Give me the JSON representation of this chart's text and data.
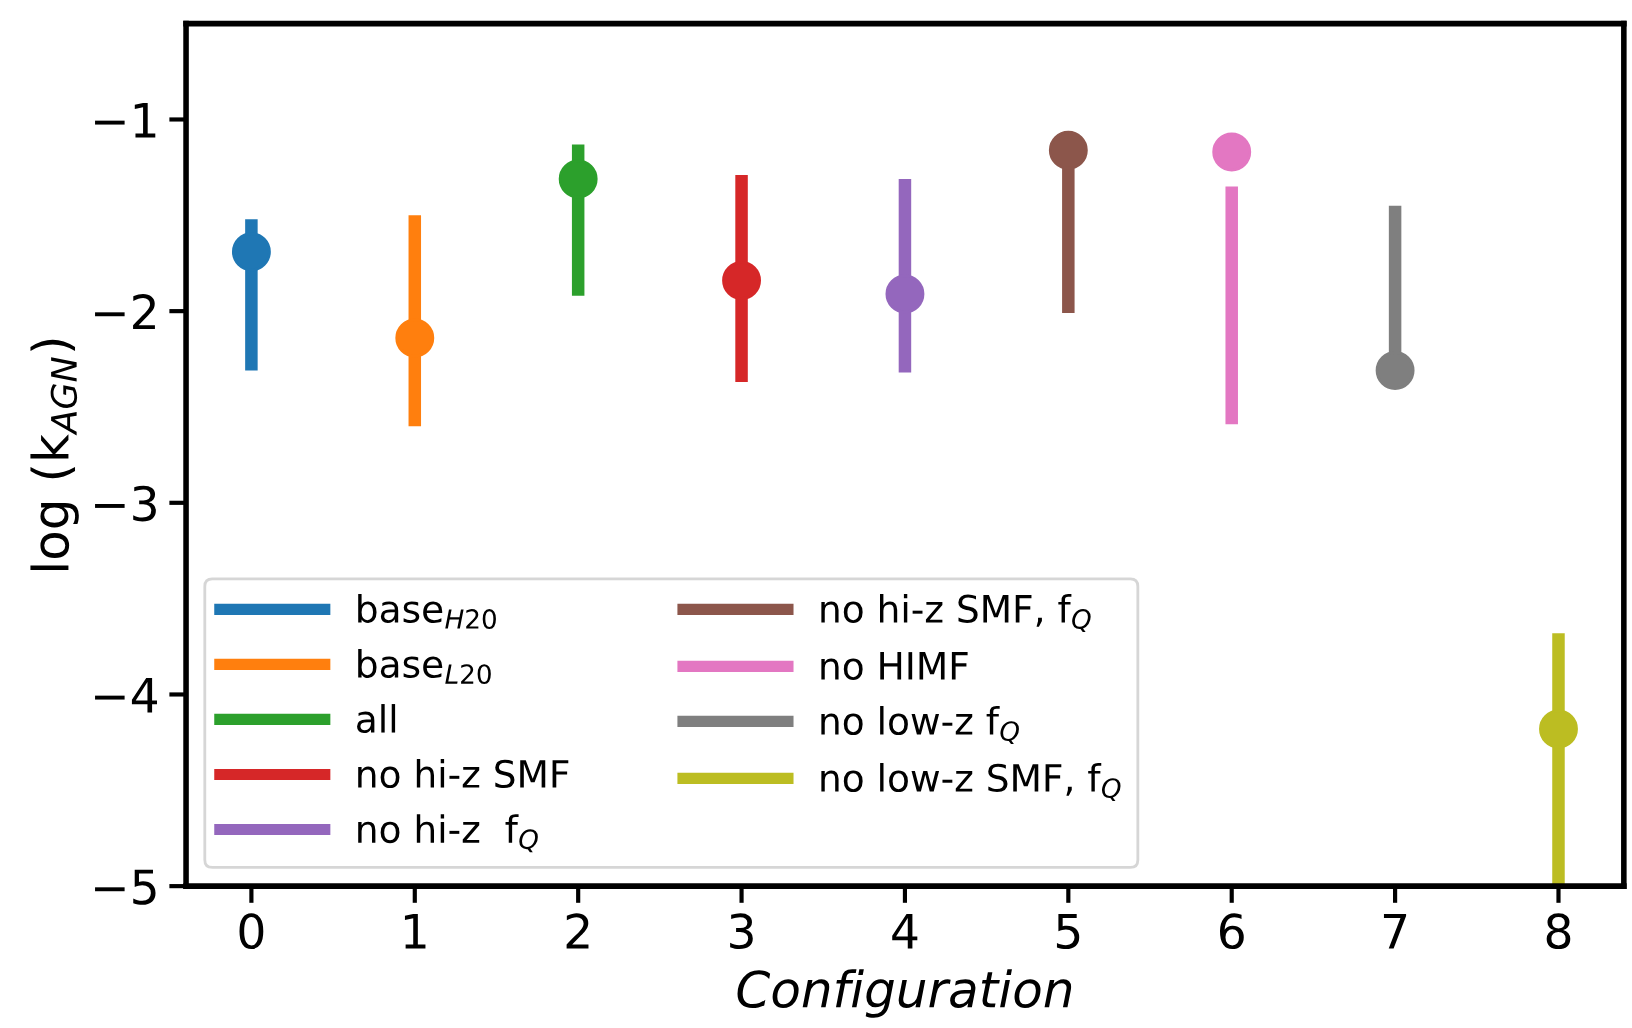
{
  "chart_data": {
    "type": "scatter",
    "xlabel": "Configuration",
    "ylabel": "log (k$_{AGN}$)",
    "xlim": [
      -0.4,
      8.4
    ],
    "xticks": [
      0,
      1,
      2,
      3,
      4,
      5,
      6,
      7,
      8
    ],
    "ylim": [
      -5,
      -0.5
    ],
    "yticks": [
      {
        "value": -5,
        "label": "−5"
      },
      {
        "value": -4,
        "label": "−4"
      },
      {
        "value": -3,
        "label": "−3"
      },
      {
        "value": -2,
        "label": "−2"
      },
      {
        "value": -1,
        "label": "−1"
      }
    ],
    "grid": false,
    "legend": "bottom left",
    "marker": "circle",
    "series": [
      {
        "name": "base$_{H20}$",
        "color": "#1f77b4",
        "x": [
          0
        ],
        "values": [
          -1.69
        ],
        "errors": [
          [
            -2.31,
            -1.52
          ]
        ]
      },
      {
        "name": "base$_{L20}$",
        "color": "#ff7f0e",
        "x": [
          1
        ],
        "values": [
          -2.14
        ],
        "errors": [
          [
            -2.6,
            -1.5
          ]
        ]
      },
      {
        "name": "all",
        "color": "#2ca02c",
        "x": [
          2
        ],
        "values": [
          -1.31
        ],
        "errors": [
          [
            -1.92,
            -1.13
          ]
        ]
      },
      {
        "name": "no hi-z SMF",
        "color": "#d62728",
        "x": [
          3
        ],
        "values": [
          -1.84
        ],
        "errors": [
          [
            -2.37,
            -1.29
          ]
        ]
      },
      {
        "name": "no hi-z  f$_{Q}$",
        "color": "#9467bd",
        "x": [
          4
        ],
        "values": [
          -1.91
        ],
        "errors": [
          [
            -2.32,
            -1.31
          ]
        ]
      },
      {
        "name": "no hi-z SMF, f$_{Q}$",
        "color": "#8c564b",
        "x": [
          5
        ],
        "values": [
          -1.16
        ],
        "errors": [
          [
            -2.01,
            -1.16
          ]
        ]
      },
      {
        "name": "no HIMF",
        "color": "#e377c2",
        "x": [
          6
        ],
        "values": [
          -1.17
        ],
        "errors": [
          [
            -2.59,
            -1.35
          ]
        ]
      },
      {
        "name": "no low-z f$_{Q}$",
        "color": "#7f7f7f",
        "x": [
          7
        ],
        "values": [
          -2.31
        ],
        "errors": [
          [
            -2.31,
            -1.45
          ]
        ]
      },
      {
        "name": "no low-z SMF, f$_{Q}$",
        "color": "#bcbd22",
        "x": [
          8
        ],
        "values": [
          -4.18
        ],
        "errors": [
          [
            -5,
            -3.68
          ]
        ]
      }
    ]
  }
}
